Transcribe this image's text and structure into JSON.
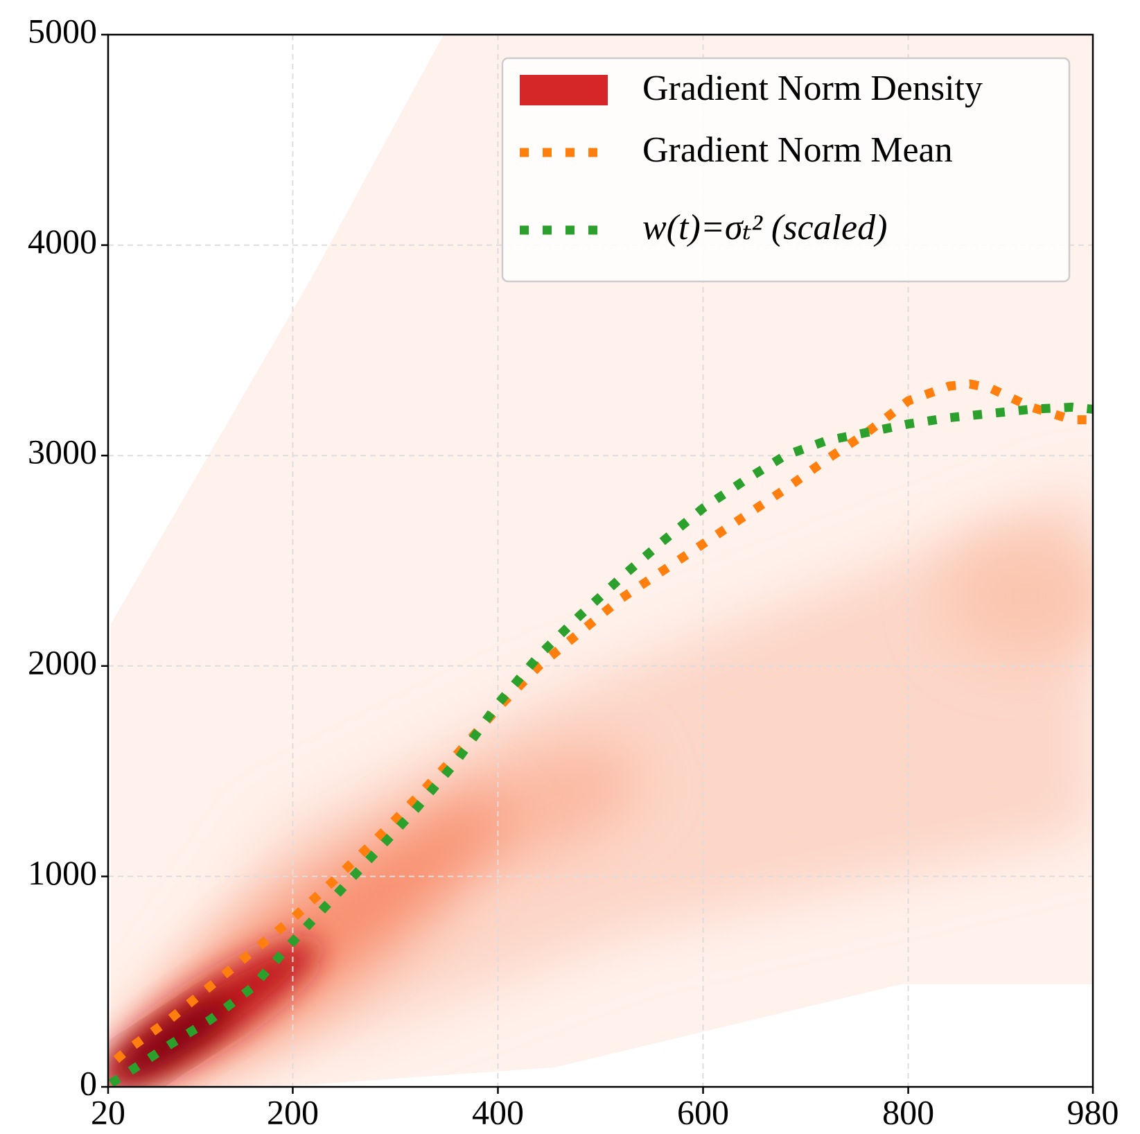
{
  "chart_data": {
    "type": "line",
    "xlim": [
      20,
      980
    ],
    "xticks": [
      20,
      200,
      400,
      600,
      800,
      980
    ],
    "ylim": [
      0,
      5000
    ],
    "yticks": [
      0,
      1000,
      2000,
      3000,
      4000,
      5000
    ],
    "grid": true,
    "legend": "upper right",
    "density": {
      "name": "Gradient Norm Density",
      "color": "#d62728"
    },
    "series": [
      {
        "name": "Gradient Norm Mean",
        "color": "#ff7f0e",
        "x": [
          28,
          40,
          80,
          120,
          160,
          200,
          240,
          280,
          320,
          360,
          400,
          440,
          480,
          520,
          560,
          600,
          640,
          680,
          720,
          760,
          800,
          840,
          860,
          880,
          920,
          960,
          975
        ],
        "values": [
          130,
          180,
          320,
          480,
          640,
          800,
          980,
          1170,
          1370,
          1580,
          1800,
          2000,
          2160,
          2320,
          2450,
          2580,
          2710,
          2840,
          2980,
          3110,
          3260,
          3330,
          3340,
          3320,
          3230,
          3170,
          3170
        ]
      },
      {
        "name": "w(t)=σₜ² (scaled)",
        "color": "#2ca02c",
        "x": [
          23,
          40,
          80,
          120,
          160,
          200,
          240,
          280,
          320,
          360,
          400,
          440,
          480,
          520,
          560,
          600,
          640,
          680,
          720,
          760,
          800,
          840,
          880,
          920,
          960,
          980
        ],
        "values": [
          17,
          70,
          200,
          320,
          470,
          690,
          900,
          1110,
          1320,
          1550,
          1820,
          2050,
          2240,
          2420,
          2590,
          2750,
          2880,
          3000,
          3070,
          3110,
          3150,
          3180,
          3200,
          3220,
          3230,
          3220
        ]
      }
    ]
  }
}
